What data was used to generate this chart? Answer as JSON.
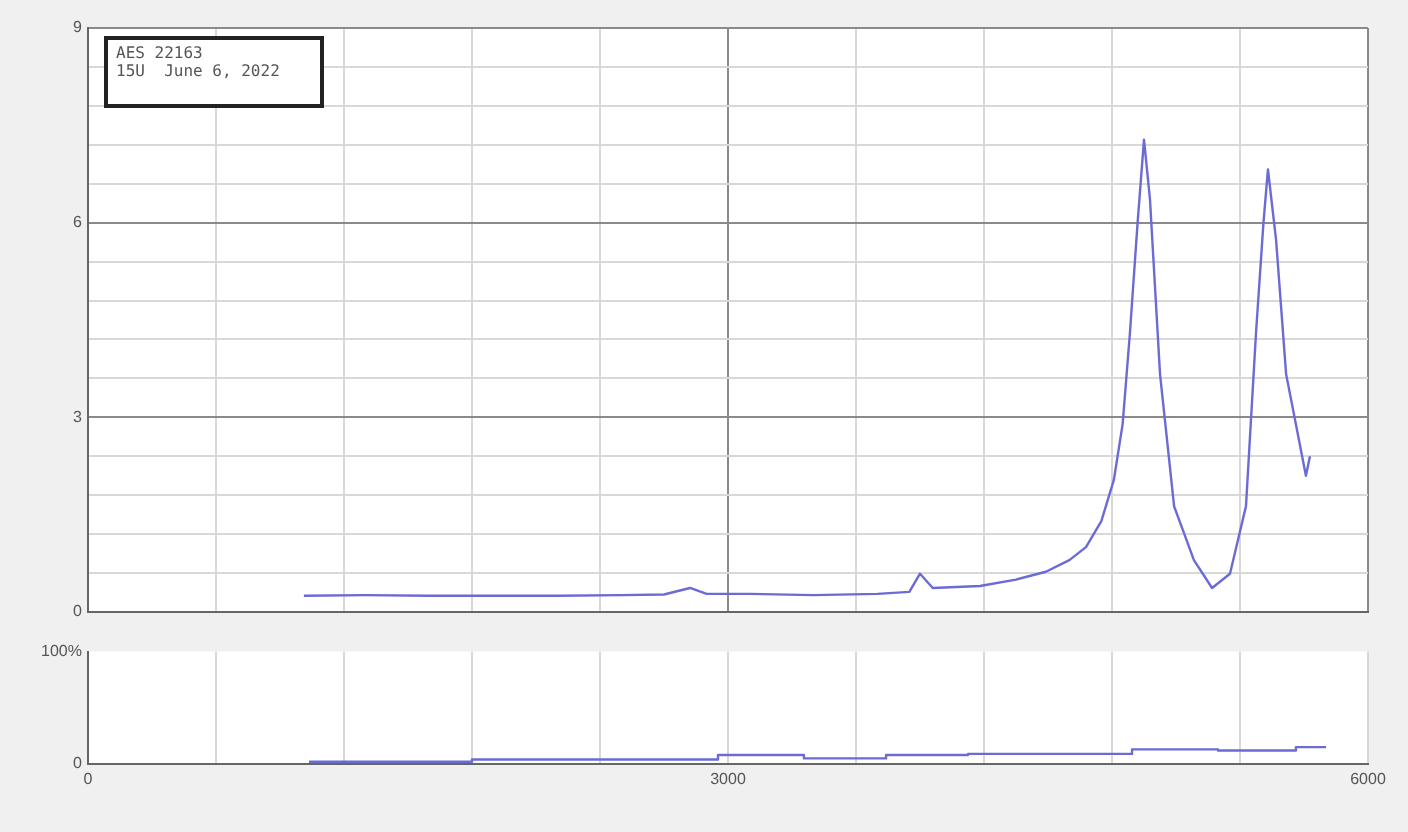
{
  "chart_data": [
    {
      "type": "line",
      "annotations": [
        "AES 22163",
        "15U  June 6, 2022"
      ],
      "x": [
        1012,
        1300,
        1600,
        1900,
        2200,
        2500,
        2700,
        2822,
        2900,
        3100,
        3400,
        3700,
        3850,
        3900,
        3960,
        4181,
        4350,
        4490,
        4600,
        4678,
        4750,
        4809,
        4850,
        4884,
        4920,
        4950,
        4978,
        5025,
        5091,
        5184,
        5269,
        5353,
        5428,
        5475,
        5510,
        5531,
        5569,
        5616,
        5709,
        5728
      ],
      "series": [
        {
          "color": "#6b6bd6",
          "values": [
            0.25,
            0.26,
            0.25,
            0.25,
            0.25,
            0.26,
            0.27,
            0.37,
            0.28,
            0.28,
            0.26,
            0.28,
            0.31,
            0.59,
            0.37,
            0.4,
            0.5,
            0.62,
            0.8,
            1.0,
            1.4,
            2.04,
            2.9,
            4.3,
            6.0,
            7.28,
            6.36,
            3.67,
            1.63,
            0.8,
            0.37,
            0.59,
            1.63,
            4.3,
            6.0,
            6.82,
            5.74,
            3.67,
            2.1,
            2.4
          ]
        }
      ],
      "xlim": [
        0,
        6000
      ],
      "xticks": [
        0,
        {
          "value": 600,
          "label": null
        },
        {
          "value": 1200,
          "label": null
        },
        {
          "value": 1800,
          "label": null
        },
        {
          "value": 2400,
          "label": null
        },
        3000,
        {
          "value": 3600,
          "label": null
        },
        {
          "value": 4200,
          "label": null
        },
        {
          "value": 4800,
          "label": null
        },
        {
          "value": 5400,
          "label": null
        },
        6000
      ],
      "ylim": [
        0,
        9
      ],
      "yticks": [
        0,
        {
          "value": 0.6,
          "label": null
        },
        {
          "value": 1.2,
          "label": null
        },
        {
          "value": 1.8,
          "label": null
        },
        {
          "value": 2.4,
          "label": null
        },
        3,
        {
          "value": 3.6,
          "label": null
        },
        {
          "value": 4.2,
          "label": null
        },
        {
          "value": 4.8,
          "label": null
        },
        {
          "value": 5.4,
          "label": null
        },
        6,
        {
          "value": 6.6,
          "label": null
        },
        {
          "value": 7.2,
          "label": null
        },
        {
          "value": 7.8,
          "label": null
        },
        {
          "value": 8.4,
          "label": null
        },
        9
      ],
      "grid": true,
      "tick_labels": "y",
      "marker": "none",
      "line_style": "solid"
    },
    {
      "type": "step",
      "x": [
        1036,
        1800,
        2953,
        3356,
        3741,
        4125,
        4894,
        5297,
        5662,
        5803
      ],
      "series": [
        {
          "color": "#6b6bd6",
          "values": [
            2,
            4,
            8,
            5,
            8,
            9,
            13,
            12,
            15,
            15
          ]
        }
      ],
      "xlim": [
        0,
        6000
      ],
      "xticks": [
        0,
        {
          "value": 600,
          "label": null
        },
        {
          "value": 1200,
          "label": null
        },
        {
          "value": 1800,
          "label": null
        },
        {
          "value": 2400,
          "label": null
        },
        3000,
        {
          "value": 3600,
          "label": null
        },
        {
          "value": 4200,
          "label": null
        },
        {
          "value": 4800,
          "label": null
        },
        {
          "value": 5400,
          "label": null
        },
        6000
      ],
      "ylim": [
        0,
        100
      ],
      "yticks": [
        0,
        {
          "value": 100,
          "label": "100%"
        }
      ],
      "grid": "x",
      "marker": "none",
      "line_style": "solid"
    }
  ]
}
